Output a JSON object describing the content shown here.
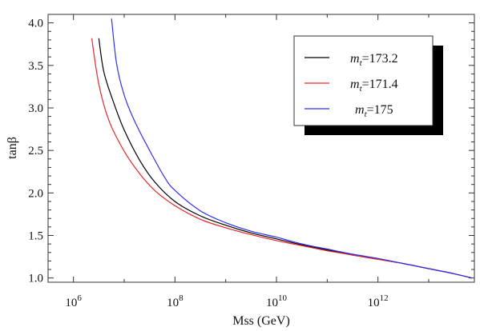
{
  "chart_data": {
    "type": "line",
    "title": "",
    "xlabel": "Mss (GeV)",
    "ylabel": "tanβ",
    "xscale": "log10",
    "xlim_log10": [
      5.5,
      13.9
    ],
    "ylim": [
      0.95,
      4.1
    ],
    "grid": false,
    "legend_position": "top-right",
    "x_ticks": [
      {
        "exp": 6,
        "label_base": "10",
        "label_exp": "6"
      },
      {
        "exp": 8,
        "label_base": "10",
        "label_exp": "8"
      },
      {
        "exp": 10,
        "label_base": "10",
        "label_exp": "10"
      },
      {
        "exp": 12,
        "label_base": "10",
        "label_exp": "12"
      }
    ],
    "y_ticks": [
      {
        "value": 1.0,
        "label": "1.0"
      },
      {
        "value": 1.5,
        "label": "1.5"
      },
      {
        "value": 2.0,
        "label": "2.0"
      },
      {
        "value": 2.5,
        "label": "2.5"
      },
      {
        "value": 3.0,
        "label": "3.0"
      },
      {
        "value": 3.5,
        "label": "3.5"
      },
      {
        "value": 4.0,
        "label": "4.0"
      }
    ],
    "series": [
      {
        "name": "m_t=173.2",
        "label_main": "m",
        "label_sub": "t",
        "label_value": "=173.2",
        "color": "#000000",
        "log10_x": [
          6.5,
          6.6,
          6.8,
          7.0,
          7.3,
          7.6,
          8.0,
          8.5,
          9.0,
          9.5,
          10.0,
          10.5,
          11.0,
          11.5,
          12.0,
          12.5,
          13.0,
          13.5,
          13.85
        ],
        "y": [
          3.82,
          3.42,
          3.05,
          2.74,
          2.39,
          2.13,
          1.9,
          1.73,
          1.62,
          1.53,
          1.46,
          1.39,
          1.33,
          1.27,
          1.22,
          1.17,
          1.11,
          1.05,
          1.0
        ]
      },
      {
        "name": "m_t=171.4",
        "label_main": "m",
        "label_sub": "t",
        "label_value": "=171.4",
        "color": "#e8262b",
        "log10_x": [
          6.36,
          6.5,
          6.7,
          7.0,
          7.3,
          7.6,
          8.0,
          8.5,
          9.0,
          9.5,
          10.0,
          10.5,
          11.0,
          11.5,
          12.0,
          12.5,
          13.0,
          13.5,
          13.85
        ],
        "y": [
          3.82,
          3.28,
          2.85,
          2.49,
          2.23,
          2.03,
          1.85,
          1.69,
          1.59,
          1.51,
          1.44,
          1.38,
          1.32,
          1.27,
          1.22,
          1.17,
          1.11,
          1.05,
          1.0
        ]
      },
      {
        "name": "m_t=175",
        "label_main": "m",
        "label_sub": "t",
        "label_value": "=175",
        "color": "#2f2ff0",
        "log10_x": [
          6.75,
          6.85,
          7.0,
          7.2,
          7.5,
          7.8,
          8.0,
          8.5,
          9.0,
          9.5,
          10.0,
          10.5,
          11.0,
          11.5,
          12.0,
          12.5,
          13.0,
          13.5,
          13.85
        ],
        "y": [
          4.05,
          3.52,
          3.15,
          2.85,
          2.5,
          2.18,
          2.03,
          1.79,
          1.65,
          1.55,
          1.48,
          1.4,
          1.34,
          1.28,
          1.23,
          1.17,
          1.11,
          1.05,
          1.0
        ]
      }
    ]
  }
}
